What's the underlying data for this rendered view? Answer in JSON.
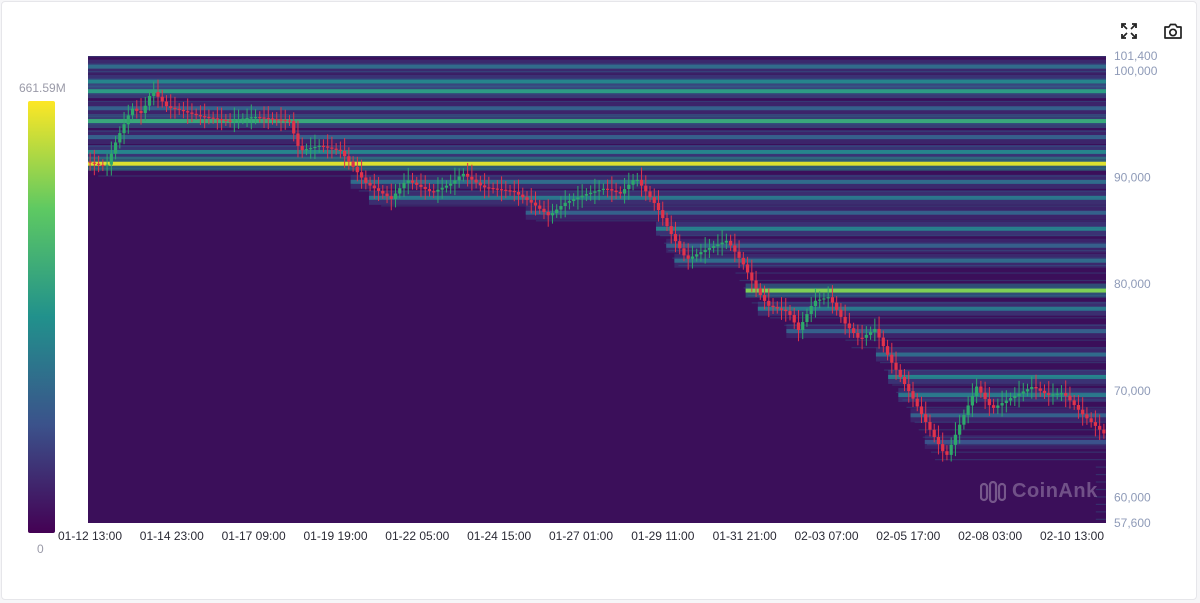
{
  "toolbar": {
    "fullscreen_icon": "expand-icon",
    "screenshot_icon": "camera-icon"
  },
  "color_scale": {
    "max_label": "661.59M",
    "min_label": "0",
    "colors": [
      "#440154",
      "#3b528b",
      "#21918c",
      "#5ec962",
      "#fde725"
    ]
  },
  "watermark": "CoinAnk",
  "chart_data": {
    "type": "heatmap",
    "title": "",
    "xlabel": "",
    "ylabel": "",
    "ylim": [
      57600,
      101400
    ],
    "y_ticks": [
      {
        "label": "101,400",
        "value": 101400
      },
      {
        "label": "100,000",
        "value": 100000
      },
      {
        "label": "90,000",
        "value": 90000
      },
      {
        "label": "80,000",
        "value": 80000
      },
      {
        "label": "70,000",
        "value": 70000
      },
      {
        "label": "60,000",
        "value": 60000
      },
      {
        "label": "57,600",
        "value": 57600
      }
    ],
    "x_ticks": [
      "01-12 13:00",
      "01-14 23:00",
      "01-17 09:00",
      "01-19 19:00",
      "01-22 05:00",
      "01-24 15:00",
      "01-27 01:00",
      "01-29 11:00",
      "01-31 21:00",
      "02-03 07:00",
      "02-05 17:00",
      "02-08 03:00",
      "02-10 13:00"
    ],
    "price_path": [
      [
        0.0,
        91500
      ],
      [
        0.02,
        91000
      ],
      [
        0.03,
        93500
      ],
      [
        0.045,
        96500
      ],
      [
        0.055,
        96000
      ],
      [
        0.065,
        98200
      ],
      [
        0.08,
        96600
      ],
      [
        0.09,
        96400
      ],
      [
        0.11,
        95800
      ],
      [
        0.14,
        95300
      ],
      [
        0.165,
        95700
      ],
      [
        0.2,
        95300
      ],
      [
        0.21,
        92500
      ],
      [
        0.23,
        93000
      ],
      [
        0.25,
        92500
      ],
      [
        0.275,
        89500
      ],
      [
        0.3,
        88000
      ],
      [
        0.315,
        89800
      ],
      [
        0.34,
        88600
      ],
      [
        0.36,
        89500
      ],
      [
        0.37,
        90400
      ],
      [
        0.39,
        89100
      ],
      [
        0.42,
        88700
      ],
      [
        0.44,
        87500
      ],
      [
        0.455,
        86400
      ],
      [
        0.47,
        87600
      ],
      [
        0.49,
        88400
      ],
      [
        0.51,
        89000
      ],
      [
        0.525,
        88500
      ],
      [
        0.54,
        90000
      ],
      [
        0.56,
        87400
      ],
      [
        0.575,
        84700
      ],
      [
        0.59,
        82300
      ],
      [
        0.61,
        83300
      ],
      [
        0.63,
        84100
      ],
      [
        0.645,
        82000
      ],
      [
        0.66,
        79300
      ],
      [
        0.67,
        78000
      ],
      [
        0.69,
        77400
      ],
      [
        0.7,
        75700
      ],
      [
        0.715,
        78400
      ],
      [
        0.73,
        78800
      ],
      [
        0.745,
        76400
      ],
      [
        0.76,
        74800
      ],
      [
        0.775,
        75800
      ],
      [
        0.79,
        72900
      ],
      [
        0.81,
        69700
      ],
      [
        0.83,
        66200
      ],
      [
        0.845,
        63800
      ],
      [
        0.86,
        67200
      ],
      [
        0.875,
        70400
      ],
      [
        0.89,
        68300
      ],
      [
        0.91,
        69400
      ],
      [
        0.93,
        70400
      ],
      [
        0.945,
        69600
      ],
      [
        0.96,
        69800
      ],
      [
        0.98,
        67700
      ],
      [
        1.0,
        66000
      ]
    ],
    "liquidity_bands": [
      {
        "price": 100400,
        "intensity": 0.35
      },
      {
        "price": 99000,
        "intensity": 0.45
      },
      {
        "price": 98100,
        "intensity": 0.55
      },
      {
        "price": 96500,
        "intensity": 0.3
      },
      {
        "price": 95300,
        "intensity": 0.6
      },
      {
        "price": 93800,
        "intensity": 0.3
      },
      {
        "price": 92400,
        "intensity": 0.45
      },
      {
        "price": 91300,
        "intensity": 0.95
      },
      {
        "price": 89600,
        "intensity": 0.35
      },
      {
        "price": 88100,
        "intensity": 0.4
      },
      {
        "price": 86700,
        "intensity": 0.3
      },
      {
        "price": 85200,
        "intensity": 0.45
      },
      {
        "price": 83600,
        "intensity": 0.3
      },
      {
        "price": 82200,
        "intensity": 0.35
      },
      {
        "price": 79400,
        "intensity": 0.8
      },
      {
        "price": 77700,
        "intensity": 0.4
      },
      {
        "price": 75600,
        "intensity": 0.3
      },
      {
        "price": 73400,
        "intensity": 0.35
      },
      {
        "price": 71300,
        "intensity": 0.45
      },
      {
        "price": 69600,
        "intensity": 0.4
      },
      {
        "price": 67700,
        "intensity": 0.3
      },
      {
        "price": 65200,
        "intensity": 0.25
      }
    ],
    "legend_position": "left",
    "grid": false
  }
}
